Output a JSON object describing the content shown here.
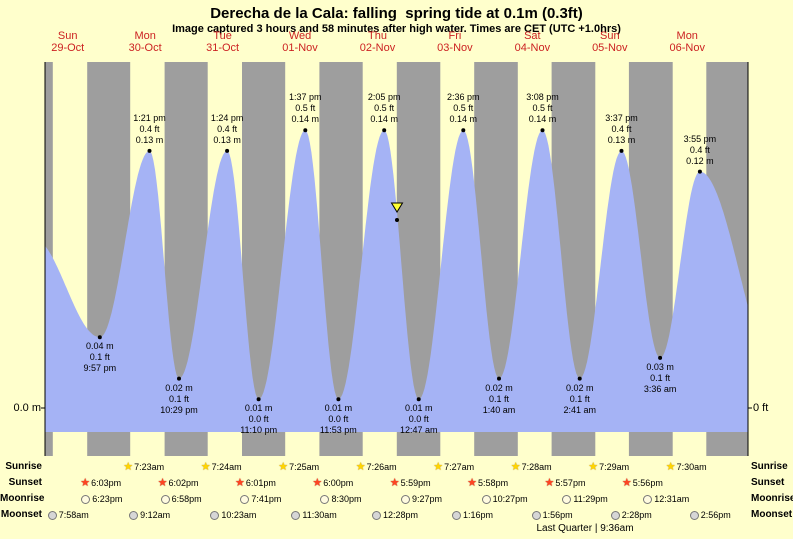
{
  "header": {
    "title": "Derecha de la Cala: falling  spring tide at 0.1m (0.3ft)",
    "subtitle": "Image captured 3 hours and 58 minutes after high water. Times are CET (UTC +1.0hrs)"
  },
  "axis": {
    "left_label": "0.0 m",
    "right_label": "0 ft"
  },
  "colors": {
    "background": "#ffffcc",
    "night_band": "#9e9e9e",
    "tide_fill": "#a5b3f5",
    "day_label": "#cc2222",
    "marker_fill": "#ffff33"
  },
  "chart_data": {
    "type": "area",
    "title": "Tide height curve for Derecha de la Cala, Sun 29-Oct to Mon 06-Nov",
    "ylabel_left": "0.0 m",
    "ylabel_right": "0 ft",
    "days": [
      {
        "name": "Sun",
        "date": "29-Oct"
      },
      {
        "name": "Mon",
        "date": "30-Oct"
      },
      {
        "name": "Tue",
        "date": "31-Oct"
      },
      {
        "name": "Wed",
        "date": "01-Nov"
      },
      {
        "name": "Thu",
        "date": "02-Nov"
      },
      {
        "name": "Fri",
        "date": "03-Nov"
      },
      {
        "name": "Sat",
        "date": "04-Nov"
      },
      {
        "name": "Sun",
        "date": "05-Nov"
      },
      {
        "name": "Mon",
        "date": "06-Nov"
      }
    ],
    "highs": [
      {
        "time": "1:21 pm",
        "ft": "0.4 ft",
        "m": "0.13 m",
        "day": 1,
        "hour": 13.35,
        "value_m": 0.13
      },
      {
        "time": "1:24 pm",
        "ft": "0.4 ft",
        "m": "0.13 m",
        "day": 2,
        "hour": 13.4,
        "value_m": 0.13
      },
      {
        "time": "1:37 pm",
        "ft": "0.5 ft",
        "m": "0.14 m",
        "day": 3,
        "hour": 13.62,
        "value_m": 0.14
      },
      {
        "time": "2:05 pm",
        "ft": "0.5 ft",
        "m": "0.14 m",
        "day": 4,
        "hour": 14.08,
        "value_m": 0.14
      },
      {
        "time": "2:36 pm",
        "ft": "0.5 ft",
        "m": "0.14 m",
        "day": 5,
        "hour": 14.6,
        "value_m": 0.14
      },
      {
        "time": "3:08 pm",
        "ft": "0.5 ft",
        "m": "0.14 m",
        "day": 6,
        "hour": 15.13,
        "value_m": 0.14
      },
      {
        "time": "3:37 pm",
        "ft": "0.4 ft",
        "m": "0.13 m",
        "day": 7,
        "hour": 15.62,
        "value_m": 0.13
      },
      {
        "time": "3:55 pm",
        "ft": "0.4 ft",
        "m": "0.12 m",
        "day": 8,
        "hour": 15.92,
        "value_m": 0.12
      }
    ],
    "lows": [
      {
        "m": "0.04 m",
        "ft": "0.1 ft",
        "time": "9:57 pm",
        "day": 0,
        "hour": 21.95,
        "value_m": 0.04
      },
      {
        "m": "0.02 m",
        "ft": "0.1 ft",
        "time": "10:29 pm",
        "day": 1,
        "hour": 22.48,
        "value_m": 0.02
      },
      {
        "m": "0.01 m",
        "ft": "0.0 ft",
        "time": "11:10 pm",
        "day": 2,
        "hour": 23.17,
        "value_m": 0.01
      },
      {
        "m": "0.01 m",
        "ft": "0.0 ft",
        "time": "11:53 pm",
        "day": 3,
        "hour": 23.88,
        "value_m": 0.01
      },
      {
        "m": "0.01 m",
        "ft": "0.0 ft",
        "time": "12:47 am",
        "day": 5,
        "hour": 0.78,
        "value_m": 0.01
      },
      {
        "m": "0.02 m",
        "ft": "0.1 ft",
        "time": "1:40 am",
        "day": 6,
        "hour": 1.67,
        "value_m": 0.02
      },
      {
        "m": "0.02 m",
        "ft": "0.1 ft",
        "time": "2:41 am",
        "day": 7,
        "hour": 2.68,
        "value_m": 0.02
      },
      {
        "m": "0.03 m",
        "ft": "0.1 ft",
        "time": "3:36 am",
        "day": 8,
        "hour": 3.6,
        "value_m": 0.03
      }
    ],
    "marker": {
      "day": 4,
      "hour": 18.05,
      "value_m": 0.1,
      "meaning": "current tide level 0.1m"
    }
  },
  "events": {
    "rows": [
      {
        "label": "Sunrise",
        "icon": "sunrise-star-icon",
        "entries": [
          {
            "time": "7:23am",
            "day": 1,
            "hour": 7.38
          },
          {
            "time": "7:24am",
            "day": 2,
            "hour": 7.4
          },
          {
            "time": "7:25am",
            "day": 3,
            "hour": 7.42
          },
          {
            "time": "7:26am",
            "day": 4,
            "hour": 7.43
          },
          {
            "time": "7:27am",
            "day": 5,
            "hour": 7.45
          },
          {
            "time": "7:28am",
            "day": 6,
            "hour": 7.47
          },
          {
            "time": "7:29am",
            "day": 7,
            "hour": 7.48
          },
          {
            "time": "7:30am",
            "day": 8,
            "hour": 7.5
          }
        ]
      },
      {
        "label": "Sunset",
        "icon": "sunset-star-icon",
        "entries": [
          {
            "time": "6:03pm",
            "day": 0,
            "hour": 18.05
          },
          {
            "time": "6:02pm",
            "day": 1,
            "hour": 18.03
          },
          {
            "time": "6:01pm",
            "day": 2,
            "hour": 18.02
          },
          {
            "time": "6:00pm",
            "day": 3,
            "hour": 18.0
          },
          {
            "time": "5:59pm",
            "day": 4,
            "hour": 17.98
          },
          {
            "time": "5:58pm",
            "day": 5,
            "hour": 17.97
          },
          {
            "time": "5:57pm",
            "day": 6,
            "hour": 17.95
          },
          {
            "time": "5:56pm",
            "day": 7,
            "hour": 17.93
          }
        ]
      },
      {
        "label": "Moonrise",
        "icon": "moonrise-moon-icon",
        "entries": [
          {
            "time": "6:23pm",
            "day": 0,
            "hour": 18.38
          },
          {
            "time": "6:58pm",
            "day": 1,
            "hour": 18.97
          },
          {
            "time": "7:41pm",
            "day": 2,
            "hour": 19.68
          },
          {
            "time": "8:30pm",
            "day": 3,
            "hour": 20.5
          },
          {
            "time": "9:27pm",
            "day": 4,
            "hour": 21.45
          },
          {
            "time": "10:27pm",
            "day": 5,
            "hour": 22.45
          },
          {
            "time": "11:29pm",
            "day": 6,
            "hour": 23.48
          },
          {
            "time": "12:31am",
            "day": 8,
            "hour": 0.52
          }
        ]
      },
      {
        "label": "Moonset",
        "icon": "moonset-moon-icon",
        "entries": [
          {
            "time": "7:58am",
            "day": 0,
            "hour": 7.97
          },
          {
            "time": "9:12am",
            "day": 1,
            "hour": 9.2
          },
          {
            "time": "10:23am",
            "day": 2,
            "hour": 10.38
          },
          {
            "time": "11:30am",
            "day": 3,
            "hour": 11.5
          },
          {
            "time": "12:28pm",
            "day": 4,
            "hour": 12.47
          },
          {
            "time": "1:16pm",
            "day": 5,
            "hour": 13.27
          },
          {
            "time": "1:56pm",
            "day": 6,
            "hour": 13.93
          },
          {
            "time": "2:28pm",
            "day": 7,
            "hour": 14.47
          },
          {
            "time": "2:56pm",
            "day": 8,
            "hour": 14.93
          }
        ]
      }
    ],
    "footnote": "Last Quarter | 9:36am"
  }
}
